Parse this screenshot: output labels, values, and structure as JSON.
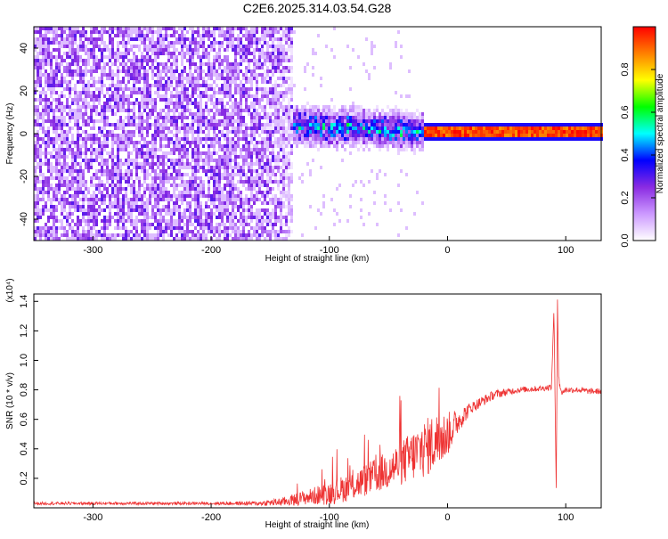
{
  "title": "C2E6.2025.314.03.54.G28",
  "chart_data": [
    {
      "type": "heatmap",
      "xlabel": "Height of straight line (km)",
      "ylabel": "Frequency (Hz)",
      "xlim": [
        -350,
        130
      ],
      "ylim": [
        -50,
        50
      ],
      "xticks": [
        -300,
        -200,
        -100,
        0,
        100
      ],
      "yticks": [
        -40,
        -20,
        0,
        20,
        40
      ],
      "colorbar": {
        "label": "Normalized spectral amplitude",
        "range": [
          0.0,
          1.0
        ],
        "ticks": [
          0.0,
          0.2,
          0.4,
          0.6,
          0.8
        ],
        "tick_labels": [
          "0.0",
          "0.2",
          "0.4",
          "0.6",
          "0.8"
        ],
        "colormap": [
          "#ffffff",
          "#cc99ff",
          "#8a2be2",
          "#0000ff",
          "#00ffff",
          "#00ff00",
          "#ffff00",
          "#ff8000",
          "#ff0000"
        ]
      },
      "regions": [
        {
          "x_range": [
            -350,
            -130
          ],
          "freq_range": [
            -50,
            50
          ],
          "amplitude": 0.15,
          "description_code": "broadband-noise"
        },
        {
          "x_range": [
            -130,
            -20
          ],
          "center_hz_start": 4,
          "center_hz_end": 1,
          "spread_hz": 10,
          "amplitude": 0.4
        },
        {
          "x_range": [
            -20,
            130
          ],
          "center_hz": 1,
          "spread_hz": 2,
          "amplitude": 1.0
        }
      ]
    },
    {
      "type": "line",
      "xlabel": "Height of straight line (km)",
      "ylabel": "SNR (10 * v/v)",
      "scale_label": "(x10⁴)",
      "xlim": [
        -350,
        130
      ],
      "ylim": [
        0,
        1.45
      ],
      "xticks": [
        -300,
        -200,
        -100,
        0,
        100
      ],
      "yticks": [
        0.2,
        0.4,
        0.6,
        0.8,
        1.0,
        1.2,
        1.4
      ],
      "color": "#ee3333",
      "series": [
        {
          "x": [
            -350,
            -300,
            -250,
            -200,
            -160,
            -140,
            -120,
            -100,
            -80,
            -60,
            -40,
            -20,
            -10,
            0,
            10,
            20,
            40,
            60,
            80,
            88,
            90,
            92,
            93,
            94,
            96,
            100,
            110,
            120,
            130
          ],
          "y": [
            0.03,
            0.03,
            0.03,
            0.03,
            0.03,
            0.04,
            0.07,
            0.1,
            0.15,
            0.22,
            0.3,
            0.4,
            0.45,
            0.5,
            0.6,
            0.68,
            0.77,
            0.8,
            0.81,
            0.82,
            1.36,
            0.08,
            1.45,
            0.9,
            0.78,
            0.8,
            0.8,
            0.79,
            0.79
          ],
          "noise": [
            0.01,
            0.01,
            0.01,
            0.01,
            0.015,
            0.03,
            0.05,
            0.08,
            0.1,
            0.12,
            0.15,
            0.2,
            0.2,
            0.15,
            0.08,
            0.04,
            0.03,
            0.02,
            0.02,
            0.02,
            0.02,
            0.02,
            0.02,
            0.05,
            0.02,
            0.02,
            0.02,
            0.02,
            0.02
          ]
        }
      ]
    }
  ]
}
